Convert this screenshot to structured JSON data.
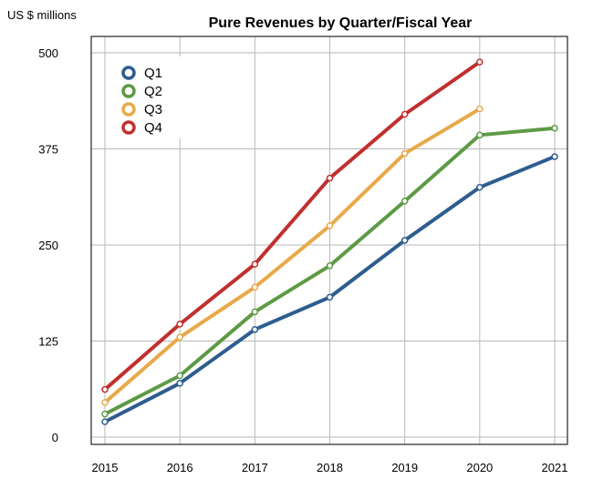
{
  "chart_data": {
    "type": "line",
    "title": "Pure Revenues by Quarter/Fiscal Year",
    "ylabel": "US $ millions",
    "xlabel": "",
    "x": [
      "2015",
      "2016",
      "2017",
      "2018",
      "2019",
      "2020",
      "2021"
    ],
    "ylim": [
      0,
      500
    ],
    "yticks": [
      0,
      125,
      250,
      375,
      500
    ],
    "grid": true,
    "legend": "top-left",
    "series": [
      {
        "name": "Q1",
        "color": "#2e5d8f",
        "values": [
          20,
          70,
          140,
          182,
          256,
          325,
          365
        ]
      },
      {
        "name": "Q2",
        "color": "#5e9a45",
        "values": [
          30,
          80,
          163,
          223,
          307,
          393,
          402
        ]
      },
      {
        "name": "Q3",
        "color": "#e9a94a",
        "values": [
          45,
          130,
          195,
          275,
          369,
          427,
          null
        ]
      },
      {
        "name": "Q4",
        "color": "#c0302e",
        "values": [
          62,
          147,
          225,
          337,
          420,
          488,
          null
        ]
      }
    ]
  }
}
